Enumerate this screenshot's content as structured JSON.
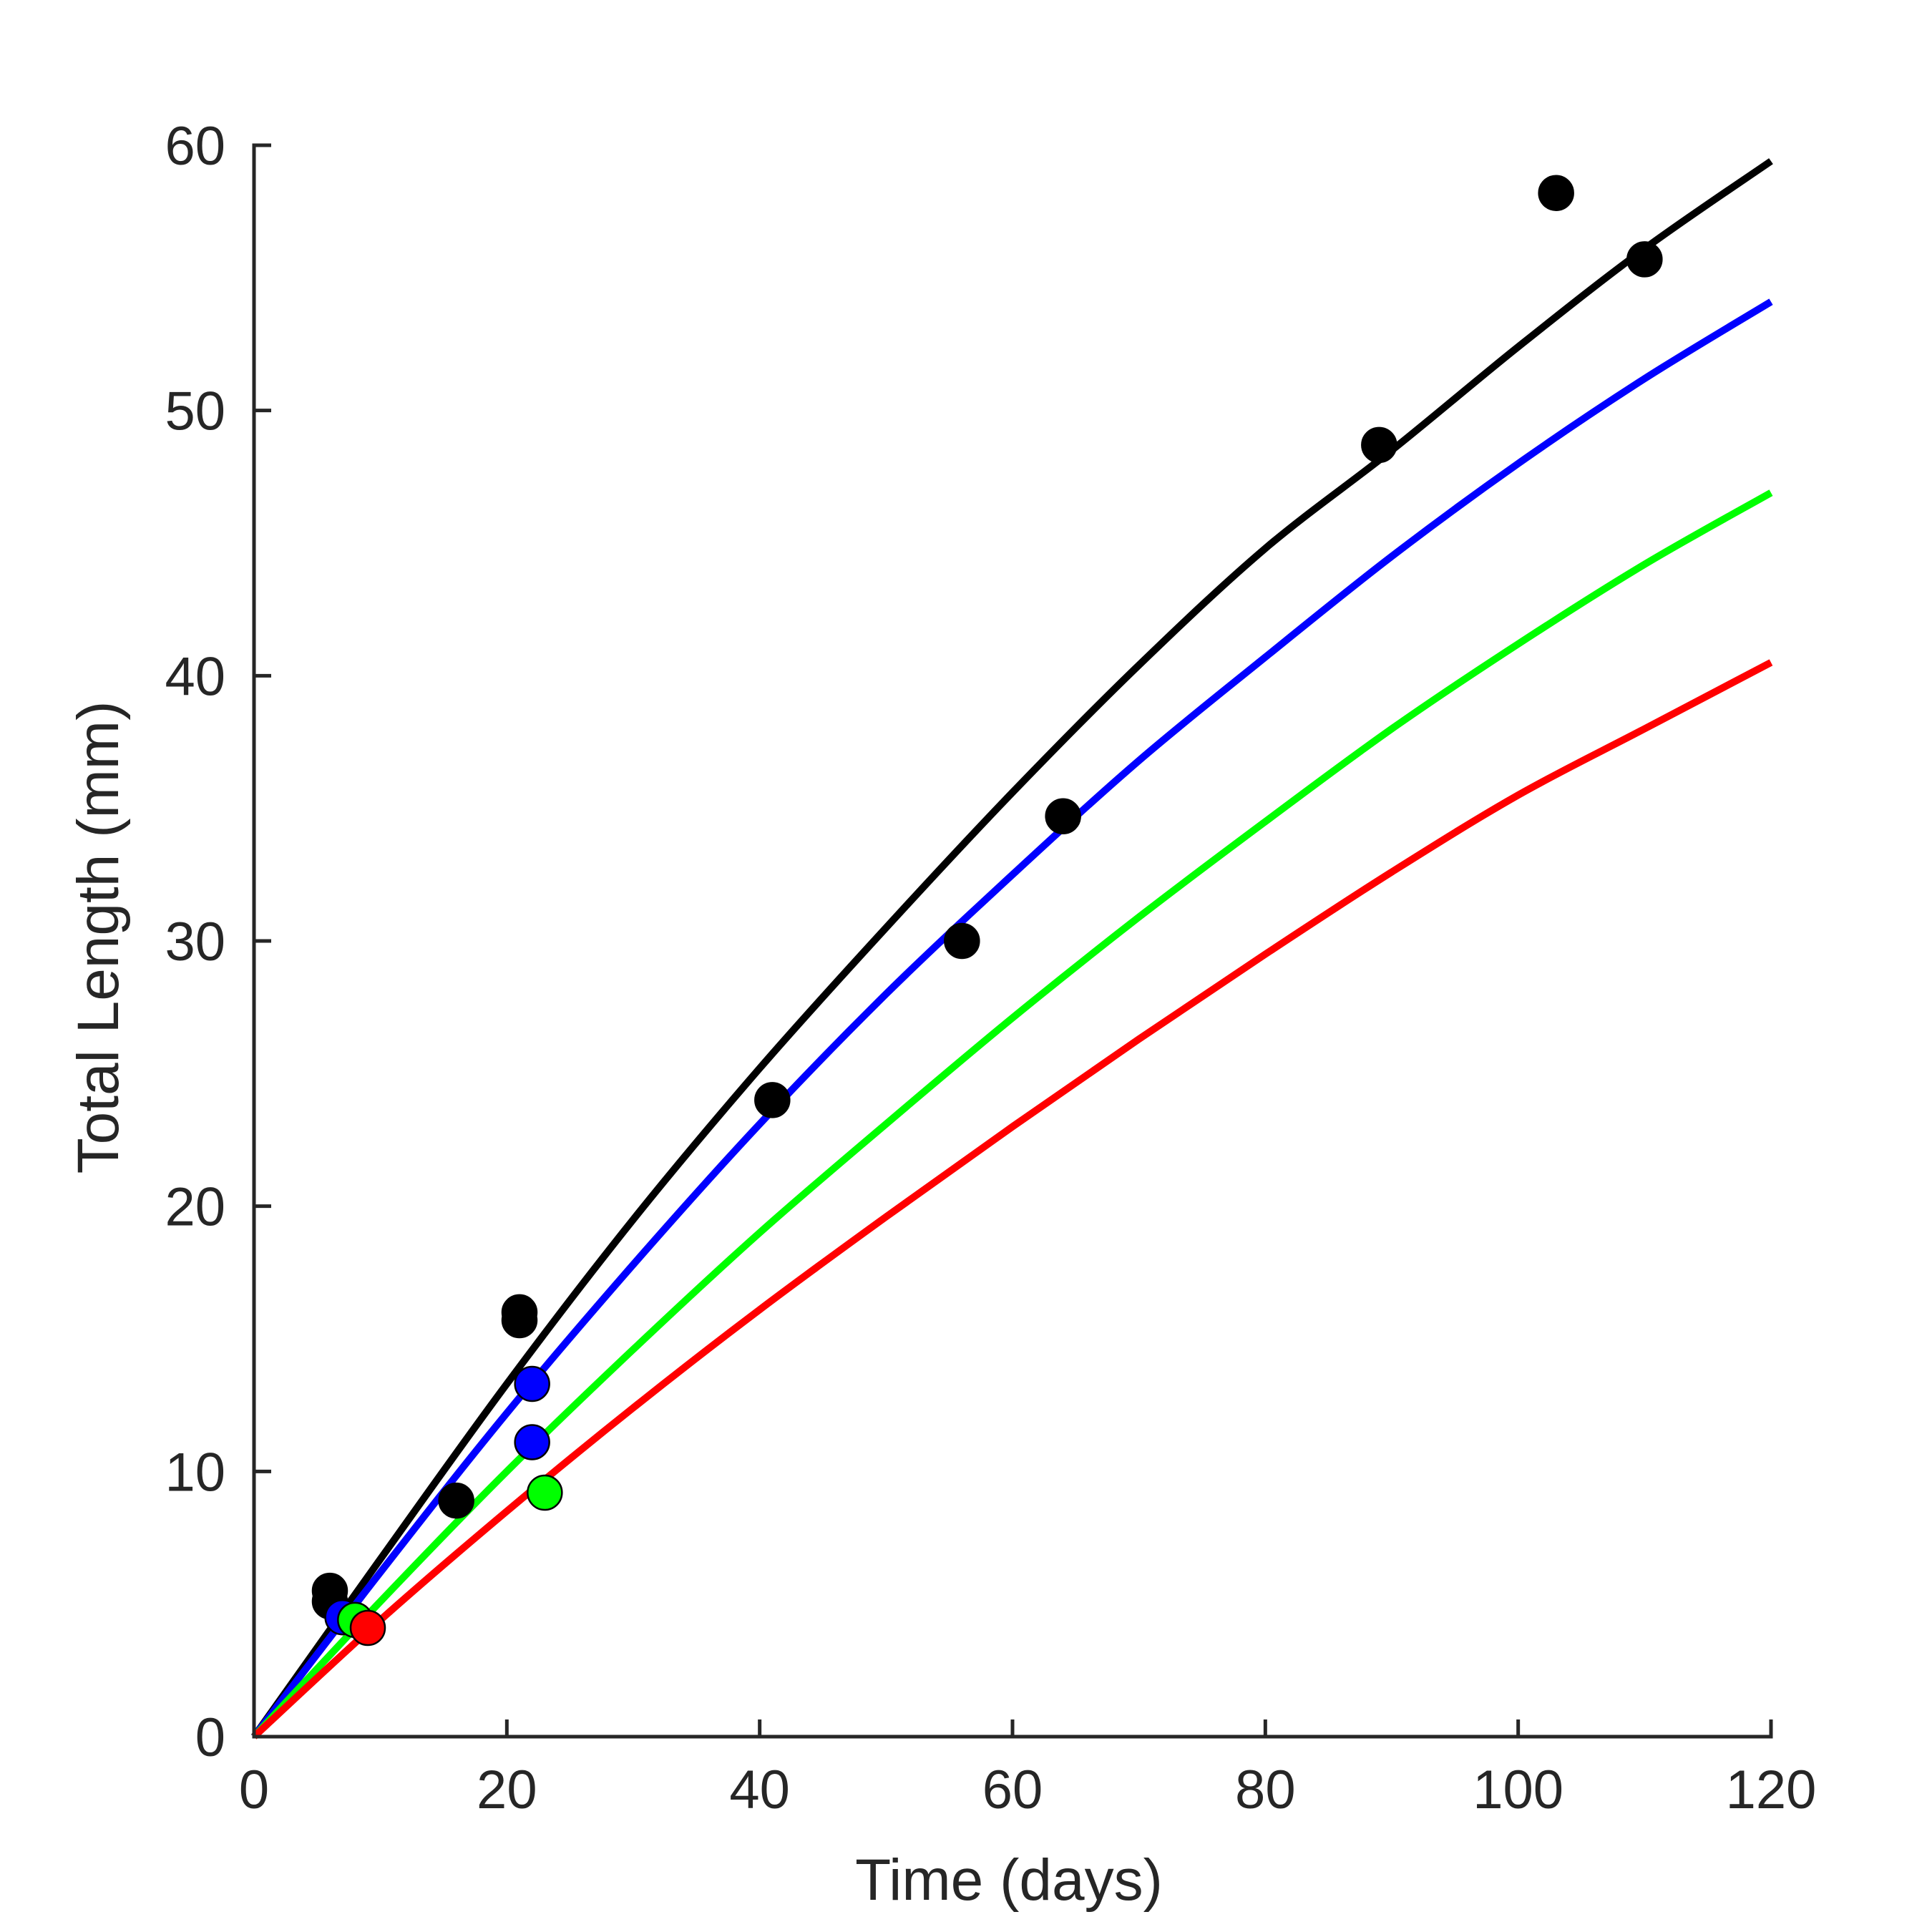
{
  "chart_data": {
    "type": "line",
    "xlabel": "Time (days)",
    "ylabel": "Total Length (mm)",
    "xlim": [
      0,
      120
    ],
    "ylim": [
      0,
      60
    ],
    "x_ticks": [
      0,
      20,
      40,
      60,
      80,
      100,
      120
    ],
    "y_ticks": [
      0,
      10,
      20,
      30,
      40,
      50,
      60
    ],
    "grid": false,
    "legend": "none",
    "series": [
      {
        "color": "#000000",
        "curve": [
          [
            0,
            0
          ],
          [
            10,
            6.7
          ],
          [
            20,
            13.3
          ],
          [
            30,
            19.5
          ],
          [
            40,
            25.2
          ],
          [
            50,
            30.5
          ],
          [
            60,
            35.6
          ],
          [
            70,
            40.4
          ],
          [
            80,
            44.8
          ],
          [
            90,
            48.5
          ],
          [
            100,
            52.4
          ],
          [
            110,
            56.1
          ],
          [
            120,
            59.4
          ]
        ],
        "points": [
          [
            6,
            5.5
          ],
          [
            6,
            5.1
          ],
          [
            16,
            8.9
          ],
          [
            21,
            16.0
          ],
          [
            21,
            15.7
          ],
          [
            41,
            24.0
          ],
          [
            56,
            30.0
          ],
          [
            64,
            34.7
          ],
          [
            89,
            48.7
          ],
          [
            103,
            58.2
          ],
          [
            110,
            55.7
          ]
        ]
      },
      {
        "color": "#0000ff",
        "curve": [
          [
            0,
            0
          ],
          [
            10,
            6.2
          ],
          [
            20,
            12.2
          ],
          [
            30,
            17.8
          ],
          [
            40,
            23.1
          ],
          [
            50,
            28.0
          ],
          [
            60,
            32.5
          ],
          [
            70,
            36.8
          ],
          [
            80,
            40.7
          ],
          [
            90,
            44.5
          ],
          [
            100,
            48.0
          ],
          [
            110,
            51.2
          ],
          [
            120,
            54.1
          ]
        ],
        "points": [
          [
            7,
            4.5
          ],
          [
            22,
            13.3
          ],
          [
            22,
            11.1
          ]
        ]
      },
      {
        "color": "#00ff00",
        "curve": [
          [
            0,
            0
          ],
          [
            10,
            5.1
          ],
          [
            20,
            10.0
          ],
          [
            30,
            14.6
          ],
          [
            40,
            19.0
          ],
          [
            50,
            23.1
          ],
          [
            60,
            27.1
          ],
          [
            70,
            30.9
          ],
          [
            80,
            34.5
          ],
          [
            90,
            38.0
          ],
          [
            100,
            41.2
          ],
          [
            110,
            44.2
          ],
          [
            120,
            46.9
          ]
        ],
        "points": [
          [
            8,
            4.4
          ],
          [
            23,
            9.2
          ]
        ]
      },
      {
        "color": "#ff0000",
        "curve": [
          [
            0,
            0
          ],
          [
            10,
            4.4
          ],
          [
            20,
            8.5
          ],
          [
            30,
            12.4
          ],
          [
            40,
            16.1
          ],
          [
            50,
            19.6
          ],
          [
            60,
            23.0
          ],
          [
            70,
            26.3
          ],
          [
            80,
            29.5
          ],
          [
            90,
            32.6
          ],
          [
            100,
            35.5
          ],
          [
            110,
            38.0
          ],
          [
            120,
            40.5
          ]
        ],
        "points": [
          [
            9,
            4.1
          ]
        ]
      }
    ]
  }
}
